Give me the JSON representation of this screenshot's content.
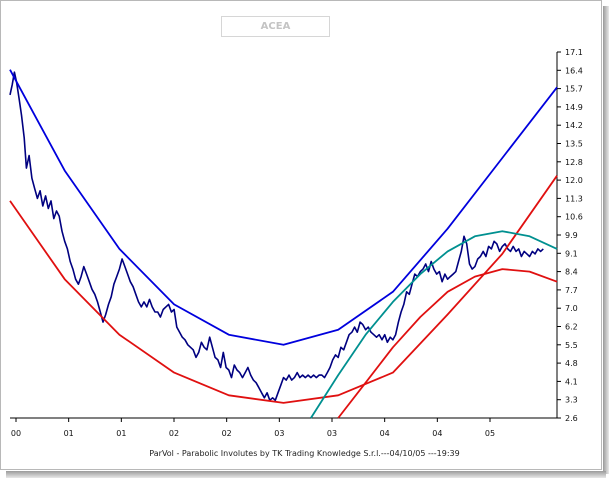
{
  "chart_data": {
    "type": "line",
    "title": "ACEA",
    "footer": "ParVol - Parabolic Involutes by TK Trading Knowledge S.r.l.---04/10/05 ---19:39",
    "x_tick_labels": [
      "00",
      "01",
      "01",
      "02",
      "02",
      "03",
      "03",
      "04",
      "04",
      "05"
    ],
    "y_tick_labels": [
      "17.1",
      "16.4",
      "15.7",
      "14.9",
      "14.2",
      "13.5",
      "12.8",
      "12.0",
      "11.3",
      "10.6",
      "9.9",
      "9.1",
      "8.4",
      "7.7",
      "7.0",
      "6.2",
      "5.5",
      "4.8",
      "4.1",
      "3.3",
      "2.6"
    ],
    "ylim": [
      2.6,
      17.1
    ],
    "xlim": [
      0,
      1
    ],
    "grid": false,
    "series": [
      {
        "color": "#000080",
        "points": [
          [
            0.0,
            15.4
          ],
          [
            0.004,
            15.8
          ],
          [
            0.008,
            16.3
          ],
          [
            0.012,
            15.9
          ],
          [
            0.017,
            15.2
          ],
          [
            0.021,
            14.6
          ],
          [
            0.026,
            13.7
          ],
          [
            0.03,
            12.5
          ],
          [
            0.035,
            13.0
          ],
          [
            0.04,
            12.1
          ],
          [
            0.045,
            11.7
          ],
          [
            0.05,
            11.3
          ],
          [
            0.055,
            11.6
          ],
          [
            0.06,
            11.0
          ],
          [
            0.065,
            11.4
          ],
          [
            0.07,
            10.9
          ],
          [
            0.075,
            11.2
          ],
          [
            0.08,
            10.5
          ],
          [
            0.085,
            10.8
          ],
          [
            0.09,
            10.6
          ],
          [
            0.095,
            10.0
          ],
          [
            0.1,
            9.6
          ],
          [
            0.105,
            9.3
          ],
          [
            0.11,
            8.8
          ],
          [
            0.115,
            8.5
          ],
          [
            0.12,
            8.1
          ],
          [
            0.125,
            7.9
          ],
          [
            0.13,
            8.2
          ],
          [
            0.135,
            8.6
          ],
          [
            0.14,
            8.3
          ],
          [
            0.145,
            8.0
          ],
          [
            0.15,
            7.7
          ],
          [
            0.155,
            7.5
          ],
          [
            0.16,
            7.2
          ],
          [
            0.165,
            6.8
          ],
          [
            0.17,
            6.4
          ],
          [
            0.175,
            6.7
          ],
          [
            0.18,
            7.1
          ],
          [
            0.185,
            7.4
          ],
          [
            0.19,
            7.9
          ],
          [
            0.195,
            8.2
          ],
          [
            0.2,
            8.5
          ],
          [
            0.205,
            8.9
          ],
          [
            0.21,
            8.6
          ],
          [
            0.215,
            8.3
          ],
          [
            0.22,
            8.0
          ],
          [
            0.225,
            7.8
          ],
          [
            0.23,
            7.5
          ],
          [
            0.235,
            7.2
          ],
          [
            0.24,
            7.0
          ],
          [
            0.245,
            7.2
          ],
          [
            0.25,
            7.0
          ],
          [
            0.255,
            7.3
          ],
          [
            0.26,
            7.0
          ],
          [
            0.265,
            6.8
          ],
          [
            0.27,
            6.8
          ],
          [
            0.275,
            6.6
          ],
          [
            0.28,
            6.9
          ],
          [
            0.285,
            7.0
          ],
          [
            0.29,
            7.1
          ],
          [
            0.295,
            6.8
          ],
          [
            0.3,
            6.9
          ],
          [
            0.305,
            6.2
          ],
          [
            0.31,
            6.0
          ],
          [
            0.315,
            5.8
          ],
          [
            0.32,
            5.7
          ],
          [
            0.325,
            5.5
          ],
          [
            0.33,
            5.4
          ],
          [
            0.335,
            5.3
          ],
          [
            0.34,
            5.0
          ],
          [
            0.345,
            5.2
          ],
          [
            0.35,
            5.6
          ],
          [
            0.355,
            5.4
          ],
          [
            0.36,
            5.3
          ],
          [
            0.365,
            5.8
          ],
          [
            0.37,
            5.4
          ],
          [
            0.375,
            5.0
          ],
          [
            0.38,
            4.9
          ],
          [
            0.385,
            4.6
          ],
          [
            0.39,
            5.2
          ],
          [
            0.395,
            4.6
          ],
          [
            0.4,
            4.5
          ],
          [
            0.405,
            4.2
          ],
          [
            0.41,
            4.7
          ],
          [
            0.415,
            4.5
          ],
          [
            0.42,
            4.4
          ],
          [
            0.425,
            4.2
          ],
          [
            0.43,
            4.4
          ],
          [
            0.435,
            4.6
          ],
          [
            0.44,
            4.3
          ],
          [
            0.445,
            4.1
          ],
          [
            0.45,
            4.0
          ],
          [
            0.455,
            3.8
          ],
          [
            0.46,
            3.6
          ],
          [
            0.465,
            3.4
          ],
          [
            0.47,
            3.6
          ],
          [
            0.475,
            3.3
          ],
          [
            0.48,
            3.4
          ],
          [
            0.485,
            3.3
          ],
          [
            0.49,
            3.6
          ],
          [
            0.495,
            3.9
          ],
          [
            0.5,
            4.2
          ],
          [
            0.505,
            4.1
          ],
          [
            0.51,
            4.3
          ],
          [
            0.515,
            4.1
          ],
          [
            0.52,
            4.2
          ],
          [
            0.525,
            4.4
          ],
          [
            0.53,
            4.2
          ],
          [
            0.535,
            4.3
          ],
          [
            0.54,
            4.2
          ],
          [
            0.545,
            4.3
          ],
          [
            0.55,
            4.2
          ],
          [
            0.555,
            4.3
          ],
          [
            0.56,
            4.2
          ],
          [
            0.565,
            4.3
          ],
          [
            0.57,
            4.3
          ],
          [
            0.575,
            4.2
          ],
          [
            0.58,
            4.4
          ],
          [
            0.585,
            4.6
          ],
          [
            0.59,
            4.9
          ],
          [
            0.595,
            5.1
          ],
          [
            0.6,
            5.0
          ],
          [
            0.605,
            5.4
          ],
          [
            0.61,
            5.3
          ],
          [
            0.615,
            5.6
          ],
          [
            0.62,
            5.9
          ],
          [
            0.625,
            6.0
          ],
          [
            0.63,
            6.2
          ],
          [
            0.635,
            6.0
          ],
          [
            0.64,
            6.4
          ],
          [
            0.645,
            6.3
          ],
          [
            0.65,
            6.1
          ],
          [
            0.655,
            6.2
          ],
          [
            0.66,
            6.0
          ],
          [
            0.665,
            5.9
          ],
          [
            0.67,
            5.8
          ],
          [
            0.675,
            5.9
          ],
          [
            0.68,
            5.7
          ],
          [
            0.685,
            5.9
          ],
          [
            0.69,
            5.6
          ],
          [
            0.695,
            5.8
          ],
          [
            0.7,
            5.7
          ],
          [
            0.705,
            5.9
          ],
          [
            0.71,
            6.4
          ],
          [
            0.715,
            6.8
          ],
          [
            0.72,
            7.1
          ],
          [
            0.725,
            7.6
          ],
          [
            0.73,
            7.5
          ],
          [
            0.735,
            7.9
          ],
          [
            0.74,
            8.3
          ],
          [
            0.745,
            8.2
          ],
          [
            0.75,
            8.4
          ],
          [
            0.755,
            8.5
          ],
          [
            0.76,
            8.7
          ],
          [
            0.765,
            8.4
          ],
          [
            0.77,
            8.8
          ],
          [
            0.775,
            8.5
          ],
          [
            0.78,
            8.3
          ],
          [
            0.785,
            8.4
          ],
          [
            0.79,
            8.0
          ],
          [
            0.795,
            8.3
          ],
          [
            0.8,
            8.1
          ],
          [
            0.805,
            8.2
          ],
          [
            0.81,
            8.3
          ],
          [
            0.815,
            8.4
          ],
          [
            0.82,
            8.8
          ],
          [
            0.825,
            9.2
          ],
          [
            0.83,
            9.8
          ],
          [
            0.835,
            9.5
          ],
          [
            0.84,
            8.7
          ],
          [
            0.845,
            8.5
          ],
          [
            0.85,
            8.6
          ],
          [
            0.855,
            8.9
          ],
          [
            0.86,
            9.0
          ],
          [
            0.865,
            9.2
          ],
          [
            0.87,
            9.0
          ],
          [
            0.875,
            9.4
          ],
          [
            0.88,
            9.3
          ],
          [
            0.885,
            9.6
          ],
          [
            0.89,
            9.5
          ],
          [
            0.895,
            9.2
          ],
          [
            0.9,
            9.4
          ],
          [
            0.905,
            9.5
          ],
          [
            0.91,
            9.3
          ],
          [
            0.915,
            9.2
          ],
          [
            0.92,
            9.4
          ],
          [
            0.925,
            9.2
          ],
          [
            0.93,
            9.3
          ],
          [
            0.935,
            9.0
          ],
          [
            0.94,
            9.2
          ],
          [
            0.945,
            9.1
          ],
          [
            0.95,
            9.0
          ],
          [
            0.955,
            9.2
          ],
          [
            0.96,
            9.1
          ],
          [
            0.965,
            9.3
          ],
          [
            0.97,
            9.2
          ],
          [
            0.975,
            9.3
          ]
        ]
      },
      {
        "color": "#0000dd",
        "points": [
          [
            0.0,
            16.4
          ],
          [
            0.1,
            12.4
          ],
          [
            0.2,
            9.3
          ],
          [
            0.3,
            7.1
          ],
          [
            0.4,
            5.9
          ],
          [
            0.5,
            5.5
          ],
          [
            0.6,
            6.1
          ],
          [
            0.7,
            7.6
          ],
          [
            0.8,
            10.1
          ],
          [
            0.9,
            12.9
          ],
          [
            1.0,
            15.7
          ]
        ]
      },
      {
        "color": "#e01010",
        "points": [
          [
            0.0,
            11.2
          ],
          [
            0.1,
            8.1
          ],
          [
            0.2,
            5.9
          ],
          [
            0.3,
            4.4
          ],
          [
            0.4,
            3.5
          ],
          [
            0.5,
            3.2
          ],
          [
            0.6,
            3.5
          ],
          [
            0.7,
            4.4
          ],
          [
            0.8,
            6.7
          ],
          [
            0.9,
            9.1
          ],
          [
            1.0,
            12.2
          ]
        ]
      },
      {
        "color": "#009090",
        "points": [
          [
            0.55,
            2.6
          ],
          [
            0.6,
            4.3
          ],
          [
            0.65,
            5.9
          ],
          [
            0.7,
            7.2
          ],
          [
            0.75,
            8.3
          ],
          [
            0.8,
            9.2
          ],
          [
            0.85,
            9.8
          ],
          [
            0.9,
            10.0
          ],
          [
            0.95,
            9.8
          ],
          [
            1.0,
            9.3
          ]
        ]
      },
      {
        "color": "#e01010",
        "points": [
          [
            0.6,
            2.6
          ],
          [
            0.65,
            4.0
          ],
          [
            0.7,
            5.4
          ],
          [
            0.75,
            6.6
          ],
          [
            0.8,
            7.6
          ],
          [
            0.85,
            8.2
          ],
          [
            0.9,
            8.5
          ],
          [
            0.95,
            8.4
          ],
          [
            1.0,
            8.0
          ]
        ]
      }
    ]
  }
}
